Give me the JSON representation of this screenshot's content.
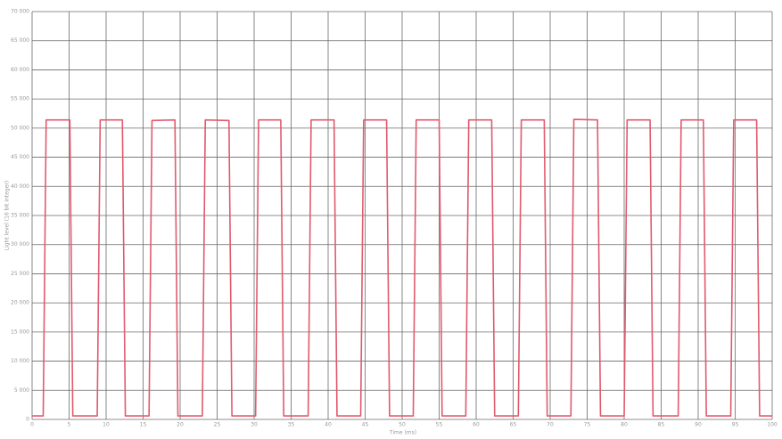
{
  "chart_data": {
    "type": "line",
    "xlabel": "Time (ms)",
    "ylabel": "Light level (16 bit integer)",
    "x": [
      0,
      1.5,
      1.9,
      5.1,
      5.5,
      8.8,
      9.2,
      12.2,
      12.6,
      15.8,
      16.2,
      19.3,
      19.7,
      23.0,
      23.4,
      26.6,
      27.0,
      30.2,
      30.6,
      33.6,
      34.0,
      37.3,
      37.7,
      40.8,
      41.2,
      44.4,
      44.8,
      47.9,
      48.3,
      51.5,
      51.9,
      55.0,
      55.4,
      58.6,
      59.0,
      62.1,
      62.5,
      65.7,
      66.1,
      69.2,
      69.6,
      72.8,
      73.2,
      76.4,
      76.8,
      80.0,
      80.4,
      83.5,
      83.9,
      87.3,
      87.7,
      90.7,
      91.1,
      94.4,
      94.8,
      97.9,
      98.3,
      100
    ],
    "series": [
      {
        "name": "Light level",
        "color": "#e05a6e",
        "values": [
          600,
          600,
          51400,
          51400,
          600,
          600,
          51400,
          51400,
          600,
          600,
          51300,
          51400,
          600,
          600,
          51400,
          51300,
          600,
          600,
          51400,
          51400,
          600,
          600,
          51400,
          51400,
          600,
          600,
          51400,
          51400,
          600,
          600,
          51400,
          51400,
          600,
          600,
          51400,
          51400,
          600,
          600,
          51400,
          51400,
          600,
          600,
          51500,
          51400,
          600,
          600,
          51400,
          51400,
          600,
          600,
          51400,
          51400,
          600,
          600,
          51400,
          51400,
          600,
          600
        ]
      }
    ],
    "xlim": [
      0,
      100
    ],
    "ylim": [
      0,
      70000
    ],
    "xticks": [
      0,
      5,
      10,
      15,
      20,
      25,
      30,
      35,
      40,
      45,
      50,
      55,
      60,
      65,
      70,
      75,
      80,
      85,
      90,
      95,
      100
    ],
    "yticks": [
      0,
      {
        "value": 5000,
        "label": "5 000"
      },
      {
        "value": 10000,
        "label": "10 000"
      },
      {
        "value": 15000,
        "label": "15 000"
      },
      {
        "value": 20000,
        "label": "20 000"
      },
      {
        "value": 25000,
        "label": "25 000"
      },
      {
        "value": 30000,
        "label": "30 000"
      },
      {
        "value": 35000,
        "label": "35 000"
      },
      {
        "value": 40000,
        "label": "40 000"
      },
      {
        "value": 45000,
        "label": "45 000"
      },
      {
        "value": 50000,
        "label": "50 000"
      },
      {
        "value": 55000,
        "label": "55 000"
      },
      {
        "value": 60000,
        "label": "60 000"
      },
      {
        "value": 65000,
        "label": "65 000"
      },
      {
        "value": 70000,
        "label": "70 000"
      }
    ],
    "grid": true
  }
}
